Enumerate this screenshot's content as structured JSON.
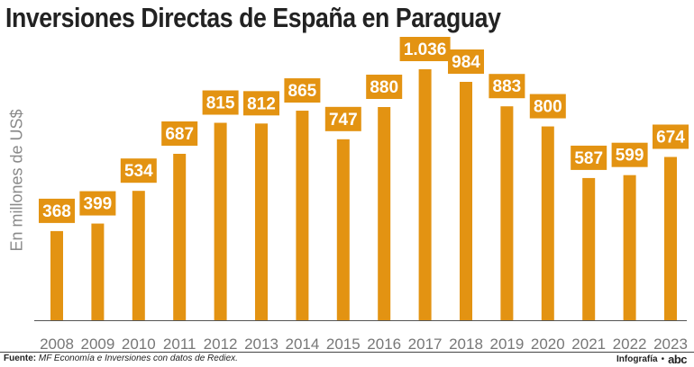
{
  "page": {
    "title": "Inversiones Directas de España en Paraguay",
    "source_label": "Fuente:",
    "source_text": "MF Economía e Inversiones con datos de Rediex.",
    "credit_label": "Infografía",
    "credit_separator": "•",
    "credit_logo": "abc"
  },
  "colors": {
    "bar": "#E39312",
    "label_bg": "#E39312",
    "label_text": "#ffffff",
    "axis": "#555555",
    "tick_text": "#777777"
  },
  "chart_data": {
    "type": "bar",
    "title": "Inversiones Directas de España en Paraguay",
    "xlabel": "",
    "ylabel": "En millones de US$",
    "categories": [
      "2008",
      "2009",
      "2010",
      "2011",
      "2012",
      "2013",
      "2014",
      "2015",
      "2016",
      "2017",
      "2018",
      "2019",
      "2020",
      "2021",
      "2022",
      "2023"
    ],
    "values": [
      368,
      399,
      534,
      687,
      815,
      812,
      865,
      747,
      880,
      1036,
      984,
      883,
      800,
      587,
      599,
      674
    ],
    "value_labels": [
      "368",
      "399",
      "534",
      "687",
      "815",
      "812",
      "865",
      "747",
      "880",
      "1.036",
      "984",
      "883",
      "800",
      "587",
      "599",
      "674"
    ],
    "ylim": [
      0,
      1036
    ],
    "grid": false,
    "legend": "none"
  }
}
